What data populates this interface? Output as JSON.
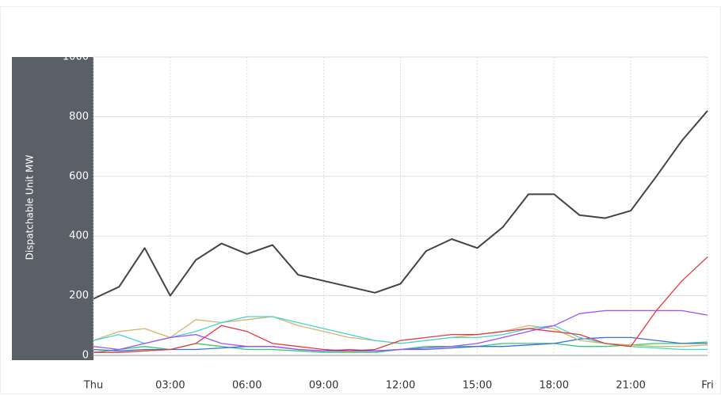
{
  "chart_data": {
    "type": "line",
    "ylabel": "Dispatchable Unit MW",
    "x": [
      0,
      1,
      2,
      3,
      4,
      5,
      6,
      7,
      8,
      9,
      10,
      11,
      12,
      13,
      14,
      15,
      16,
      17,
      18,
      19,
      20,
      21,
      22,
      23,
      24
    ],
    "xlim": [
      0,
      24
    ],
    "xticks": [
      {
        "value": 0,
        "label": "Thu"
      },
      {
        "value": 3,
        "label": "03:00"
      },
      {
        "value": 6,
        "label": "06:00"
      },
      {
        "value": 9,
        "label": "09:00"
      },
      {
        "value": 12,
        "label": "12:00"
      },
      {
        "value": 15,
        "label": "15:00"
      },
      {
        "value": 18,
        "label": "18:00"
      },
      {
        "value": 21,
        "label": "21:00"
      },
      {
        "value": 24,
        "label": "Fri"
      }
    ],
    "ylim": [
      0,
      1000
    ],
    "yticks": [
      0,
      200,
      400,
      600,
      800,
      1000
    ],
    "grid": true,
    "series": [
      {
        "color": "#2ecc71",
        "values": [
          10,
          20,
          30,
          20,
          40,
          30,
          20,
          20,
          15,
          10,
          10,
          10,
          20,
          30,
          30,
          30,
          40,
          40,
          40,
          30,
          30,
          35,
          40,
          40,
          45
        ]
      },
      {
        "color": "#3f6fd8",
        "values": [
          20,
          15,
          20,
          20,
          20,
          25,
          30,
          30,
          20,
          15,
          15,
          15,
          20,
          20,
          25,
          30,
          30,
          35,
          40,
          55,
          60,
          60,
          50,
          40,
          40
        ]
      },
      {
        "color": "#d9b36a",
        "values": [
          50,
          80,
          90,
          60,
          120,
          110,
          120,
          130,
          100,
          80,
          60,
          50,
          40,
          50,
          60,
          70,
          80,
          100,
          90,
          50,
          40,
          35,
          30,
          30,
          35
        ]
      },
      {
        "color": "#3fd6d6",
        "values": [
          50,
          70,
          40,
          60,
          80,
          110,
          130,
          130,
          110,
          90,
          70,
          50,
          40,
          50,
          60,
          60,
          70,
          90,
          100,
          60,
          40,
          30,
          25,
          20,
          20
        ]
      },
      {
        "color": "#a64dff",
        "values": [
          30,
          20,
          40,
          60,
          70,
          40,
          30,
          30,
          20,
          15,
          20,
          15,
          20,
          25,
          30,
          40,
          60,
          80,
          100,
          140,
          150,
          150,
          150,
          150,
          135
        ]
      },
      {
        "color": "#e8383d",
        "values": [
          10,
          10,
          15,
          20,
          40,
          100,
          80,
          40,
          30,
          20,
          15,
          20,
          50,
          60,
          70,
          70,
          80,
          90,
          80,
          70,
          40,
          30,
          150,
          250,
          330
        ]
      },
      {
        "color": "#444444",
        "values": [
          190,
          230,
          360,
          200,
          320,
          375,
          340,
          370,
          270,
          250,
          230,
          210,
          240,
          350,
          390,
          360,
          430,
          540,
          540,
          470,
          460,
          485,
          600,
          720,
          820
        ]
      }
    ]
  }
}
